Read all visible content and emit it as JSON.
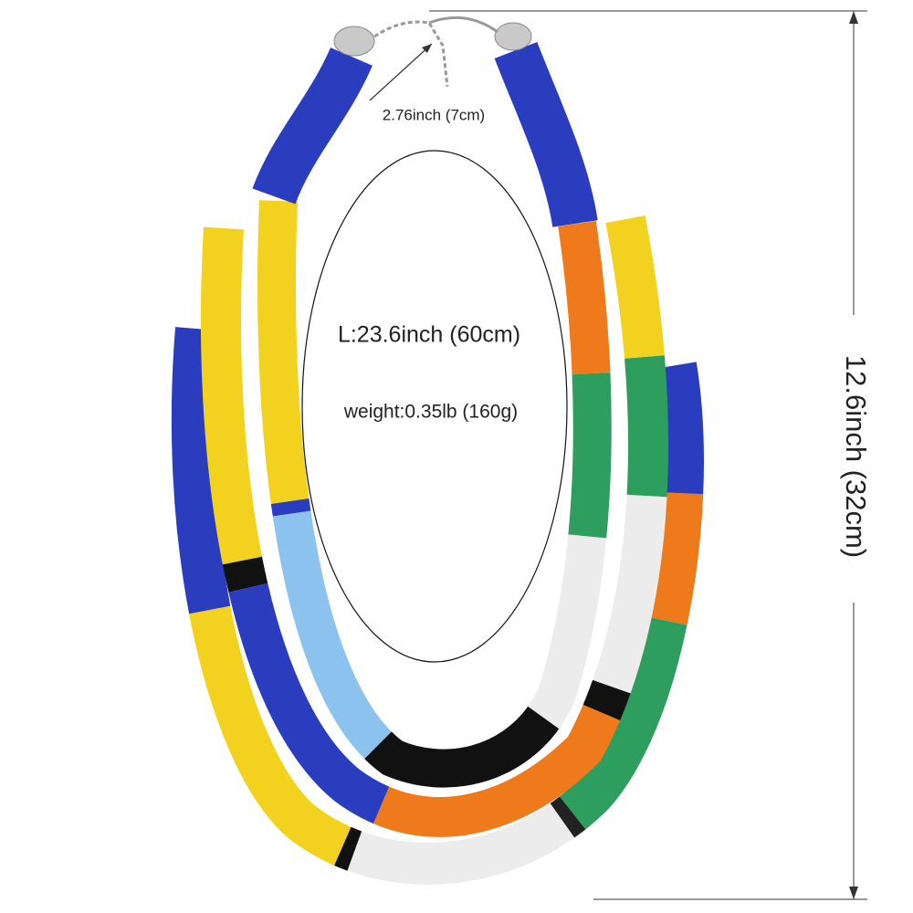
{
  "annotations": {
    "chain_extension": "2.76inch (7cm)",
    "length": "L:23.6inch (60cm)",
    "weight": "weight:0.35lb (160g)",
    "height": "12.6inch (32cm)"
  }
}
